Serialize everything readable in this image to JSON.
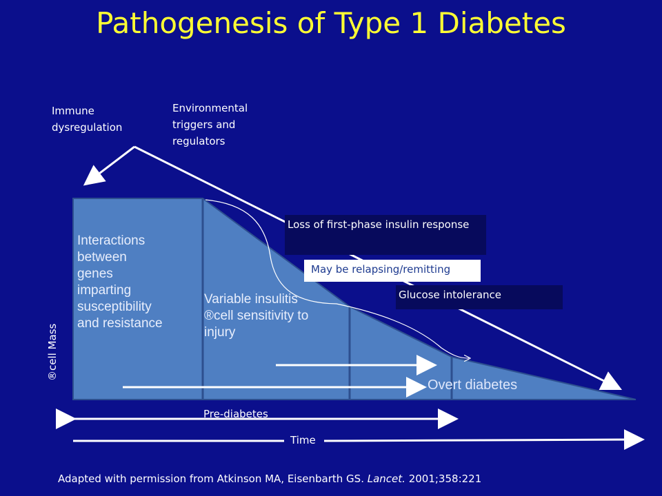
{
  "title": "Pathogenesis of Type 1 Diabetes",
  "labels": {
    "immune": [
      "Immune",
      "dysregulation"
    ],
    "environmental": [
      "Environmental",
      "triggers and",
      "regulators"
    ],
    "genes": [
      "Interactions",
      "between",
      "genes",
      "imparting",
      "susceptibility",
      "and resistance"
    ],
    "insulitis": [
      "Variable insulitis",
      "®cell  sensitivity to",
      "injury"
    ],
    "loss_first_phase": "Loss of first-phase insulin response",
    "relapsing": "May be relapsing/remitting",
    "glucose": "Glucose intolerance",
    "overt": "Overt diabetes",
    "y_axis": "®cell Mass",
    "prediabetes": "Pre-diabetes",
    "time": "Time"
  },
  "footer": {
    "prefix": "Adapted with permission from Atkinson MA, Eisenbarth GS. ",
    "journal": "Lancet.",
    "suffix": " 2001;358:221"
  },
  "colors": {
    "background": "#0b0f8c",
    "title": "#ffff33",
    "shape_fill": "#4f7fc2",
    "shape_stroke": "#2d4f8f"
  }
}
